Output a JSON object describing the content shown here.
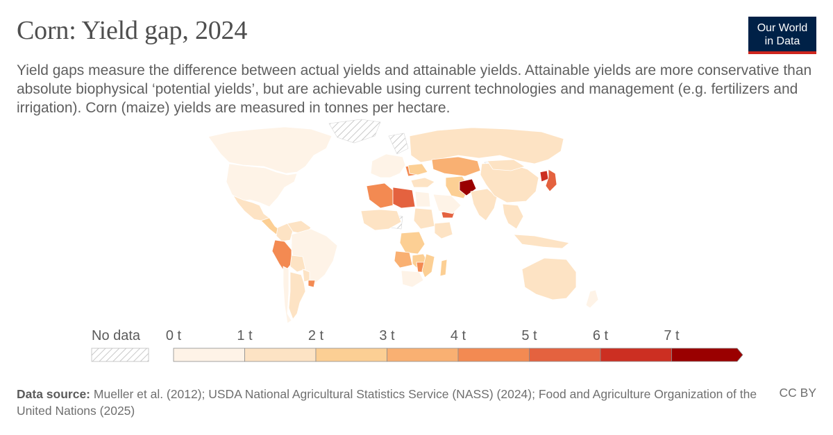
{
  "header": {
    "title": "Corn: Yield gap, 2024",
    "subtitle": "Yield gaps measure the difference between actual yields and attainable yields. Attainable yields are more conservative than absolute biophysical ‘potential yields’, but are achievable using current technologies and management (e.g. fertilizers and irrigation). Corn (maize) yields are measured in tonnes per hectare."
  },
  "logo": {
    "line1": "Our World",
    "line2": "in Data"
  },
  "legend": {
    "no_data_label": "No data",
    "ticks": [
      "0 t",
      "1 t",
      "2 t",
      "3 t",
      "4 t",
      "5 t",
      "6 t",
      "7 t"
    ],
    "bins": [
      {
        "from": 0,
        "to": 1,
        "color": "#fef3e7"
      },
      {
        "from": 1,
        "to": 2,
        "color": "#fde3c4"
      },
      {
        "from": 2,
        "to": 3,
        "color": "#fccf94"
      },
      {
        "from": 3,
        "to": 4,
        "color": "#f9b072"
      },
      {
        "from": 4,
        "to": 5,
        "color": "#f38a52"
      },
      {
        "from": 5,
        "to": 6,
        "color": "#e4623f"
      },
      {
        "from": 6,
        "to": 7,
        "color": "#cc2f22"
      },
      {
        "from": 7,
        "to": null,
        "color": "#9a0000"
      }
    ]
  },
  "map_data": {
    "unit": "tonnes per hectare",
    "year": 2024,
    "regions": [
      {
        "name": "Canada",
        "value": 0.4
      },
      {
        "name": "United States",
        "value": 0.5
      },
      {
        "name": "Mexico",
        "value": 1.5
      },
      {
        "name": "Central America",
        "value": 2.5
      },
      {
        "name": "Colombia",
        "value": 1.5
      },
      {
        "name": "Venezuela",
        "value": 1.2
      },
      {
        "name": "Peru",
        "value": 4.3
      },
      {
        "name": "Brazil",
        "value": 0.5
      },
      {
        "name": "Bolivia",
        "value": 1.6
      },
      {
        "name": "Paraguay",
        "value": 1.4
      },
      {
        "name": "Argentina",
        "value": 1.0
      },
      {
        "name": "Uruguay",
        "value": 4.6
      },
      {
        "name": "Chile",
        "value": 0.8
      },
      {
        "name": "Europe West",
        "value": 0.6
      },
      {
        "name": "Russia",
        "value": 1.9
      },
      {
        "name": "Kazakhstan",
        "value": 3.5
      },
      {
        "name": "Romania",
        "value": 4.8
      },
      {
        "name": "Ukraine",
        "value": 2.1
      },
      {
        "name": "Turkey",
        "value": 1.5
      },
      {
        "name": "Algeria",
        "value": 4.3
      },
      {
        "name": "Libya",
        "value": 5.2
      },
      {
        "name": "Egypt",
        "value": 0.5
      },
      {
        "name": "West Africa",
        "value": 1.8
      },
      {
        "name": "Sudan",
        "value": 1.2
      },
      {
        "name": "Ethiopia",
        "value": 1.6
      },
      {
        "name": "Yemen",
        "value": 5.2
      },
      {
        "name": "Saudi Arabia",
        "value": 0.5
      },
      {
        "name": "Iran",
        "value": 2.6
      },
      {
        "name": "Afghanistan",
        "value": 7.3
      },
      {
        "name": "DR Congo",
        "value": 2.5
      },
      {
        "name": "Angola",
        "value": 3.5
      },
      {
        "name": "Zambia",
        "value": 2.6
      },
      {
        "name": "Zimbabwe",
        "value": 4.2
      },
      {
        "name": "Mozambique",
        "value": 2.0
      },
      {
        "name": "South Africa",
        "value": 0.9
      },
      {
        "name": "Madagascar",
        "value": 2.2
      },
      {
        "name": "India",
        "value": 1.5
      },
      {
        "name": "China",
        "value": 1.4
      },
      {
        "name": "Mongolia",
        "value": 1.0
      },
      {
        "name": "North Korea",
        "value": 6.3
      },
      {
        "name": "Japan",
        "value": 5.8
      },
      {
        "name": "Southeast Asia",
        "value": 1.3
      },
      {
        "name": "Indonesia",
        "value": 1.0
      },
      {
        "name": "Australia",
        "value": 1.8
      },
      {
        "name": "New Zealand",
        "value": 0.7
      }
    ]
  },
  "footer": {
    "source_label": "Data source:",
    "source_text": "Mueller et al. (2012); USDA National Agricultural Statistics Service (NASS) (2024); Food and Agriculture Organization of the United Nations (2025)",
    "license": "CC BY"
  }
}
